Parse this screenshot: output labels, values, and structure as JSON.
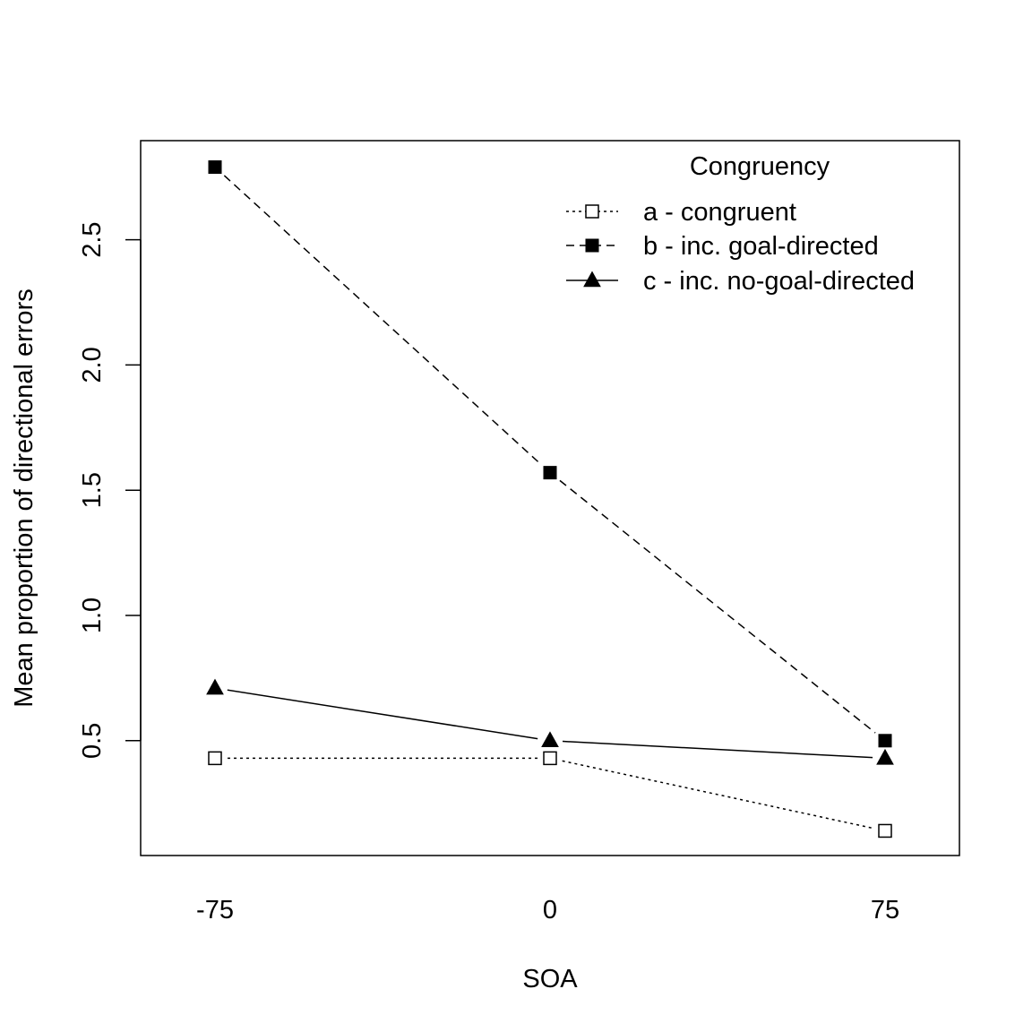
{
  "chart_data": {
    "type": "line",
    "title": "",
    "xlabel": "SOA",
    "ylabel": "Mean proportion of directional errors",
    "categories": [
      "-75",
      "0",
      "75"
    ],
    "yticks": [
      "0.5",
      "1.0",
      "1.5",
      "2.0",
      "2.5"
    ],
    "ytick_values": [
      0.5,
      1.0,
      1.5,
      2.0,
      2.5
    ],
    "ylim": [
      0.1,
      2.85
    ],
    "grid": false,
    "legend": {
      "title": "Congruency",
      "placement": "top-right"
    },
    "series": [
      {
        "name": "a - congruent",
        "values": [
          0.43,
          0.43,
          0.14
        ],
        "marker": "open-square",
        "line": "dotted",
        "color": "#000000"
      },
      {
        "name": "b - inc. goal-directed",
        "values": [
          2.79,
          1.57,
          0.5
        ],
        "marker": "filled-square",
        "line": "dashed",
        "color": "#000000"
      },
      {
        "name": "c - inc. no-goal-directed",
        "values": [
          0.71,
          0.5,
          0.43
        ],
        "marker": "filled-triangle",
        "line": "solid",
        "color": "#000000"
      }
    ]
  }
}
